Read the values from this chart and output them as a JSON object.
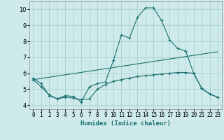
{
  "title": "",
  "xlabel": "Humidex (Indice chaleur)",
  "bg_color": "#ceeaea",
  "grid_color": "#aad0d0",
  "line_color": "#1a7070",
  "xlim": [
    -0.5,
    23.5
  ],
  "ylim": [
    3.75,
    10.5
  ],
  "xticks": [
    0,
    1,
    2,
    3,
    4,
    5,
    6,
    7,
    8,
    9,
    10,
    11,
    12,
    13,
    14,
    15,
    16,
    17,
    18,
    19,
    20,
    21,
    22,
    23
  ],
  "yticks": [
    4,
    5,
    6,
    7,
    8,
    9,
    10
  ],
  "line1_x": [
    0,
    1,
    2,
    3,
    4,
    5,
    6,
    7,
    8,
    9,
    10,
    11,
    12,
    13,
    14,
    15,
    16,
    17,
    18,
    19,
    20,
    21,
    22,
    23
  ],
  "line1_y": [
    5.7,
    5.35,
    4.6,
    4.4,
    4.6,
    4.55,
    4.2,
    5.15,
    5.35,
    5.45,
    6.8,
    8.4,
    8.2,
    9.5,
    10.1,
    10.1,
    9.3,
    8.1,
    7.55,
    7.4,
    6.0,
    5.05,
    4.7,
    4.5
  ],
  "line2_x": [
    0,
    23
  ],
  "line2_y": [
    5.6,
    7.35
  ],
  "line3_x": [
    0,
    1,
    2,
    3,
    4,
    5,
    6,
    7,
    8,
    9,
    10,
    11,
    12,
    13,
    14,
    15,
    16,
    17,
    18,
    19,
    20,
    21,
    22,
    23
  ],
  "line3_y": [
    5.6,
    5.15,
    4.65,
    4.4,
    4.5,
    4.45,
    4.35,
    4.4,
    5.0,
    5.3,
    5.5,
    5.6,
    5.7,
    5.8,
    5.85,
    5.9,
    5.95,
    6.0,
    6.05,
    6.05,
    6.0,
    5.05,
    4.7,
    4.5
  ]
}
